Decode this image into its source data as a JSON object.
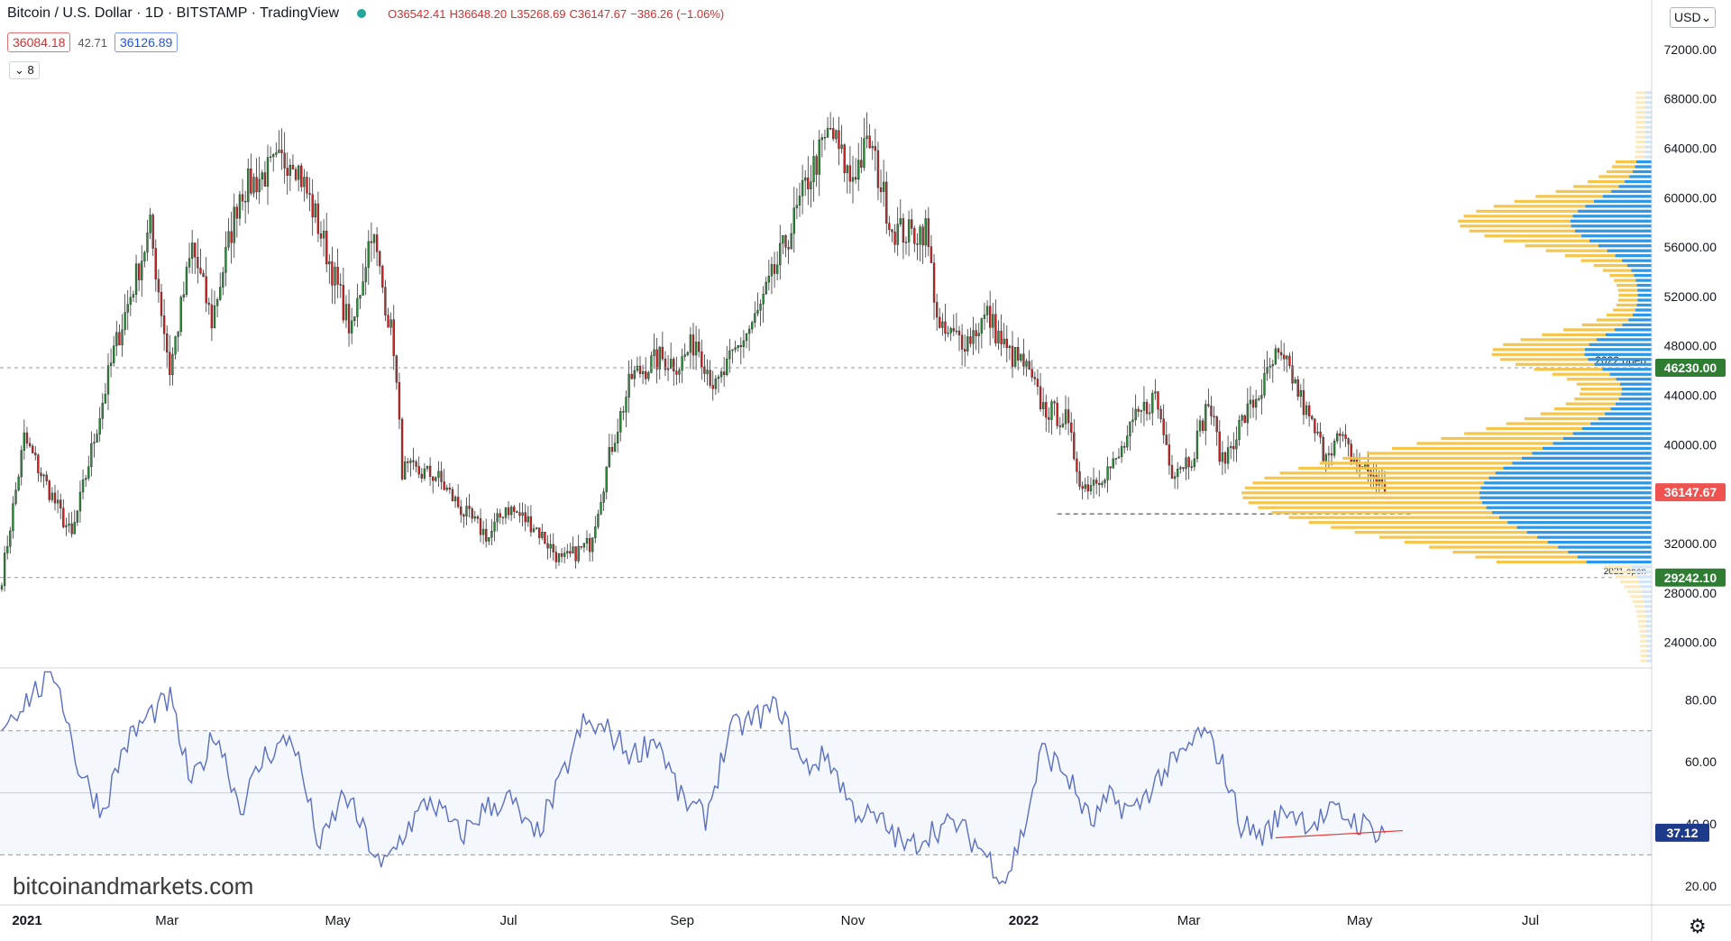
{
  "header": {
    "title": "Bitcoin / U.S. Dollar · 1D · BITSTAMP · TradingView",
    "ohlc_o": "O36542.41",
    "ohlc_h": "H36648.20",
    "ohlc_l": "L35268.69",
    "ohlc_c": "C36147.67",
    "change": "−386.26 (−1.06%)",
    "bid": "36084.18",
    "spread": "42.71",
    "ask": "36126.89",
    "collapse_count": "8",
    "currency": "USD"
  },
  "watermark": "bitcoinandmarkets.com",
  "colors": {
    "up": "#2e8b3a",
    "down": "#c62828",
    "rsi_line": "#5b6fc2",
    "volume_profile_gold": "#f5c242",
    "volume_profile_blue": "#2196f3"
  },
  "chart_data": [
    {
      "type": "candlestick",
      "title": "",
      "x_axis_labels": [
        "2021",
        "Mar",
        "May",
        "Jul",
        "Sep",
        "Nov",
        "2022",
        "Mar",
        "May",
        "Jul"
      ],
      "y_ticks": [
        24000,
        28000,
        32000,
        36000,
        40000,
        44000,
        48000,
        52000,
        56000,
        60000,
        64000,
        68000,
        72000
      ],
      "ylim": [
        22000,
        76000
      ],
      "price_labels": [
        {
          "value": 46230.0,
          "text": "46230.00",
          "color": "#2e7d32"
        },
        {
          "value": 36147.67,
          "text": "36147.67",
          "color": "#ef5350"
        },
        {
          "value": 29242.1,
          "text": "29242.10",
          "color": "#2e7d32"
        }
      ],
      "horizontal_lines": [
        {
          "value": 46230,
          "label": "2022 open",
          "style": "dashed"
        },
        {
          "value": 29242,
          "label": "2021 open",
          "style": "dashed"
        },
        {
          "value": 34400,
          "label": "",
          "style": "dashed-dark"
        }
      ],
      "key_points": [
        {
          "t": 0,
          "price": 29242
        },
        {
          "t": 8,
          "price": 40500
        },
        {
          "t": 25,
          "price": 32500
        },
        {
          "t": 40,
          "price": 47500
        },
        {
          "t": 53,
          "price": 57500
        },
        {
          "t": 60,
          "price": 46000
        },
        {
          "t": 68,
          "price": 56000
        },
        {
          "t": 75,
          "price": 50000
        },
        {
          "t": 85,
          "price": 60500
        },
        {
          "t": 104,
          "price": 63500
        },
        {
          "t": 112,
          "price": 58500
        },
        {
          "t": 125,
          "price": 49000
        },
        {
          "t": 132,
          "price": 57500
        },
        {
          "t": 140,
          "price": 48000
        },
        {
          "t": 143,
          "price": 38000
        },
        {
          "t": 155,
          "price": 37500
        },
        {
          "t": 165,
          "price": 34500
        },
        {
          "t": 174,
          "price": 32500
        },
        {
          "t": 180,
          "price": 35000
        },
        {
          "t": 190,
          "price": 33500
        },
        {
          "t": 200,
          "price": 30500
        },
        {
          "t": 210,
          "price": 32000
        },
        {
          "t": 218,
          "price": 40000
        },
        {
          "t": 225,
          "price": 45500
        },
        {
          "t": 235,
          "price": 47000
        },
        {
          "t": 242,
          "price": 46500
        },
        {
          "t": 248,
          "price": 48500
        },
        {
          "t": 255,
          "price": 44500
        },
        {
          "t": 262,
          "price": 47500
        },
        {
          "t": 270,
          "price": 50500
        },
        {
          "t": 282,
          "price": 57500
        },
        {
          "t": 288,
          "price": 61500
        },
        {
          "t": 296,
          "price": 65500
        },
        {
          "t": 303,
          "price": 61500
        },
        {
          "t": 310,
          "price": 64500
        },
        {
          "t": 318,
          "price": 57500
        },
        {
          "t": 325,
          "price": 57000
        },
        {
          "t": 330,
          "price": 57500
        },
        {
          "t": 335,
          "price": 49000
        },
        {
          "t": 345,
          "price": 48500
        },
        {
          "t": 352,
          "price": 50500
        },
        {
          "t": 359,
          "price": 47500
        },
        {
          "t": 365,
          "price": 46500
        },
        {
          "t": 372,
          "price": 43000
        },
        {
          "t": 380,
          "price": 42000
        },
        {
          "t": 386,
          "price": 36500
        },
        {
          "t": 392,
          "price": 37500
        },
        {
          "t": 398,
          "price": 38500
        },
        {
          "t": 405,
          "price": 42000
        },
        {
          "t": 412,
          "price": 44000
        },
        {
          "t": 418,
          "price": 38000
        },
        {
          "t": 425,
          "price": 39000
        },
        {
          "t": 431,
          "price": 43500
        },
        {
          "t": 436,
          "price": 38500
        },
        {
          "t": 442,
          "price": 41500
        },
        {
          "t": 450,
          "price": 44500
        },
        {
          "t": 455,
          "price": 47000
        },
        {
          "t": 460,
          "price": 46000
        },
        {
          "t": 466,
          "price": 42500
        },
        {
          "t": 472,
          "price": 39500
        },
        {
          "t": 478,
          "price": 40500
        },
        {
          "t": 484,
          "price": 38500
        },
        {
          "t": 490,
          "price": 37500
        },
        {
          "t": 494,
          "price": 36148
        }
      ]
    },
    {
      "type": "line",
      "title": "",
      "ylim": [
        15,
        90
      ],
      "y_ticks": [
        20,
        40,
        60,
        80
      ],
      "bands": [
        30,
        50,
        70
      ],
      "last_value": 37.12,
      "key_points": [
        {
          "t": 0,
          "rsi": 72
        },
        {
          "t": 10,
          "rsi": 82
        },
        {
          "t": 18,
          "rsi": 88
        },
        {
          "t": 25,
          "rsi": 58
        },
        {
          "t": 33,
          "rsi": 44
        },
        {
          "t": 40,
          "rsi": 65
        },
        {
          "t": 48,
          "rsi": 75
        },
        {
          "t": 55,
          "rsi": 80
        },
        {
          "t": 62,
          "rsi": 52
        },
        {
          "t": 70,
          "rsi": 70
        },
        {
          "t": 78,
          "rsi": 45
        },
        {
          "t": 86,
          "rsi": 62
        },
        {
          "t": 95,
          "rsi": 68
        },
        {
          "t": 104,
          "rsi": 32
        },
        {
          "t": 112,
          "rsi": 50
        },
        {
          "t": 120,
          "rsi": 34
        },
        {
          "t": 124,
          "rsi": 25
        },
        {
          "t": 132,
          "rsi": 38
        },
        {
          "t": 140,
          "rsi": 48
        },
        {
          "t": 150,
          "rsi": 36
        },
        {
          "t": 158,
          "rsi": 45
        },
        {
          "t": 166,
          "rsi": 48
        },
        {
          "t": 174,
          "rsi": 35
        },
        {
          "t": 182,
          "rsi": 52
        },
        {
          "t": 190,
          "rsi": 72
        },
        {
          "t": 198,
          "rsi": 70
        },
        {
          "t": 206,
          "rsi": 62
        },
        {
          "t": 214,
          "rsi": 68
        },
        {
          "t": 222,
          "rsi": 48
        },
        {
          "t": 230,
          "rsi": 42
        },
        {
          "t": 238,
          "rsi": 70
        },
        {
          "t": 246,
          "rsi": 74
        },
        {
          "t": 254,
          "rsi": 78
        },
        {
          "t": 262,
          "rsi": 58
        },
        {
          "t": 270,
          "rsi": 62
        },
        {
          "t": 278,
          "rsi": 45
        },
        {
          "t": 288,
          "rsi": 40
        },
        {
          "t": 296,
          "rsi": 32
        },
        {
          "t": 304,
          "rsi": 38
        },
        {
          "t": 312,
          "rsi": 40
        },
        {
          "t": 320,
          "rsi": 32
        },
        {
          "t": 328,
          "rsi": 22
        },
        {
          "t": 334,
          "rsi": 38
        },
        {
          "t": 340,
          "rsi": 64
        },
        {
          "t": 348,
          "rsi": 56
        },
        {
          "t": 356,
          "rsi": 40
        },
        {
          "t": 362,
          "rsi": 48
        },
        {
          "t": 370,
          "rsi": 44
        },
        {
          "t": 378,
          "rsi": 55
        },
        {
          "t": 386,
          "rsi": 62
        },
        {
          "t": 392,
          "rsi": 70
        },
        {
          "t": 398,
          "rsi": 62
        },
        {
          "t": 405,
          "rsi": 40
        },
        {
          "t": 412,
          "rsi": 36
        },
        {
          "t": 420,
          "rsi": 45
        },
        {
          "t": 428,
          "rsi": 40
        },
        {
          "t": 436,
          "rsi": 44
        },
        {
          "t": 444,
          "rsi": 40
        },
        {
          "t": 452,
          "rsi": 37
        }
      ],
      "annotation": "declining trend line under RSI lows"
    }
  ]
}
